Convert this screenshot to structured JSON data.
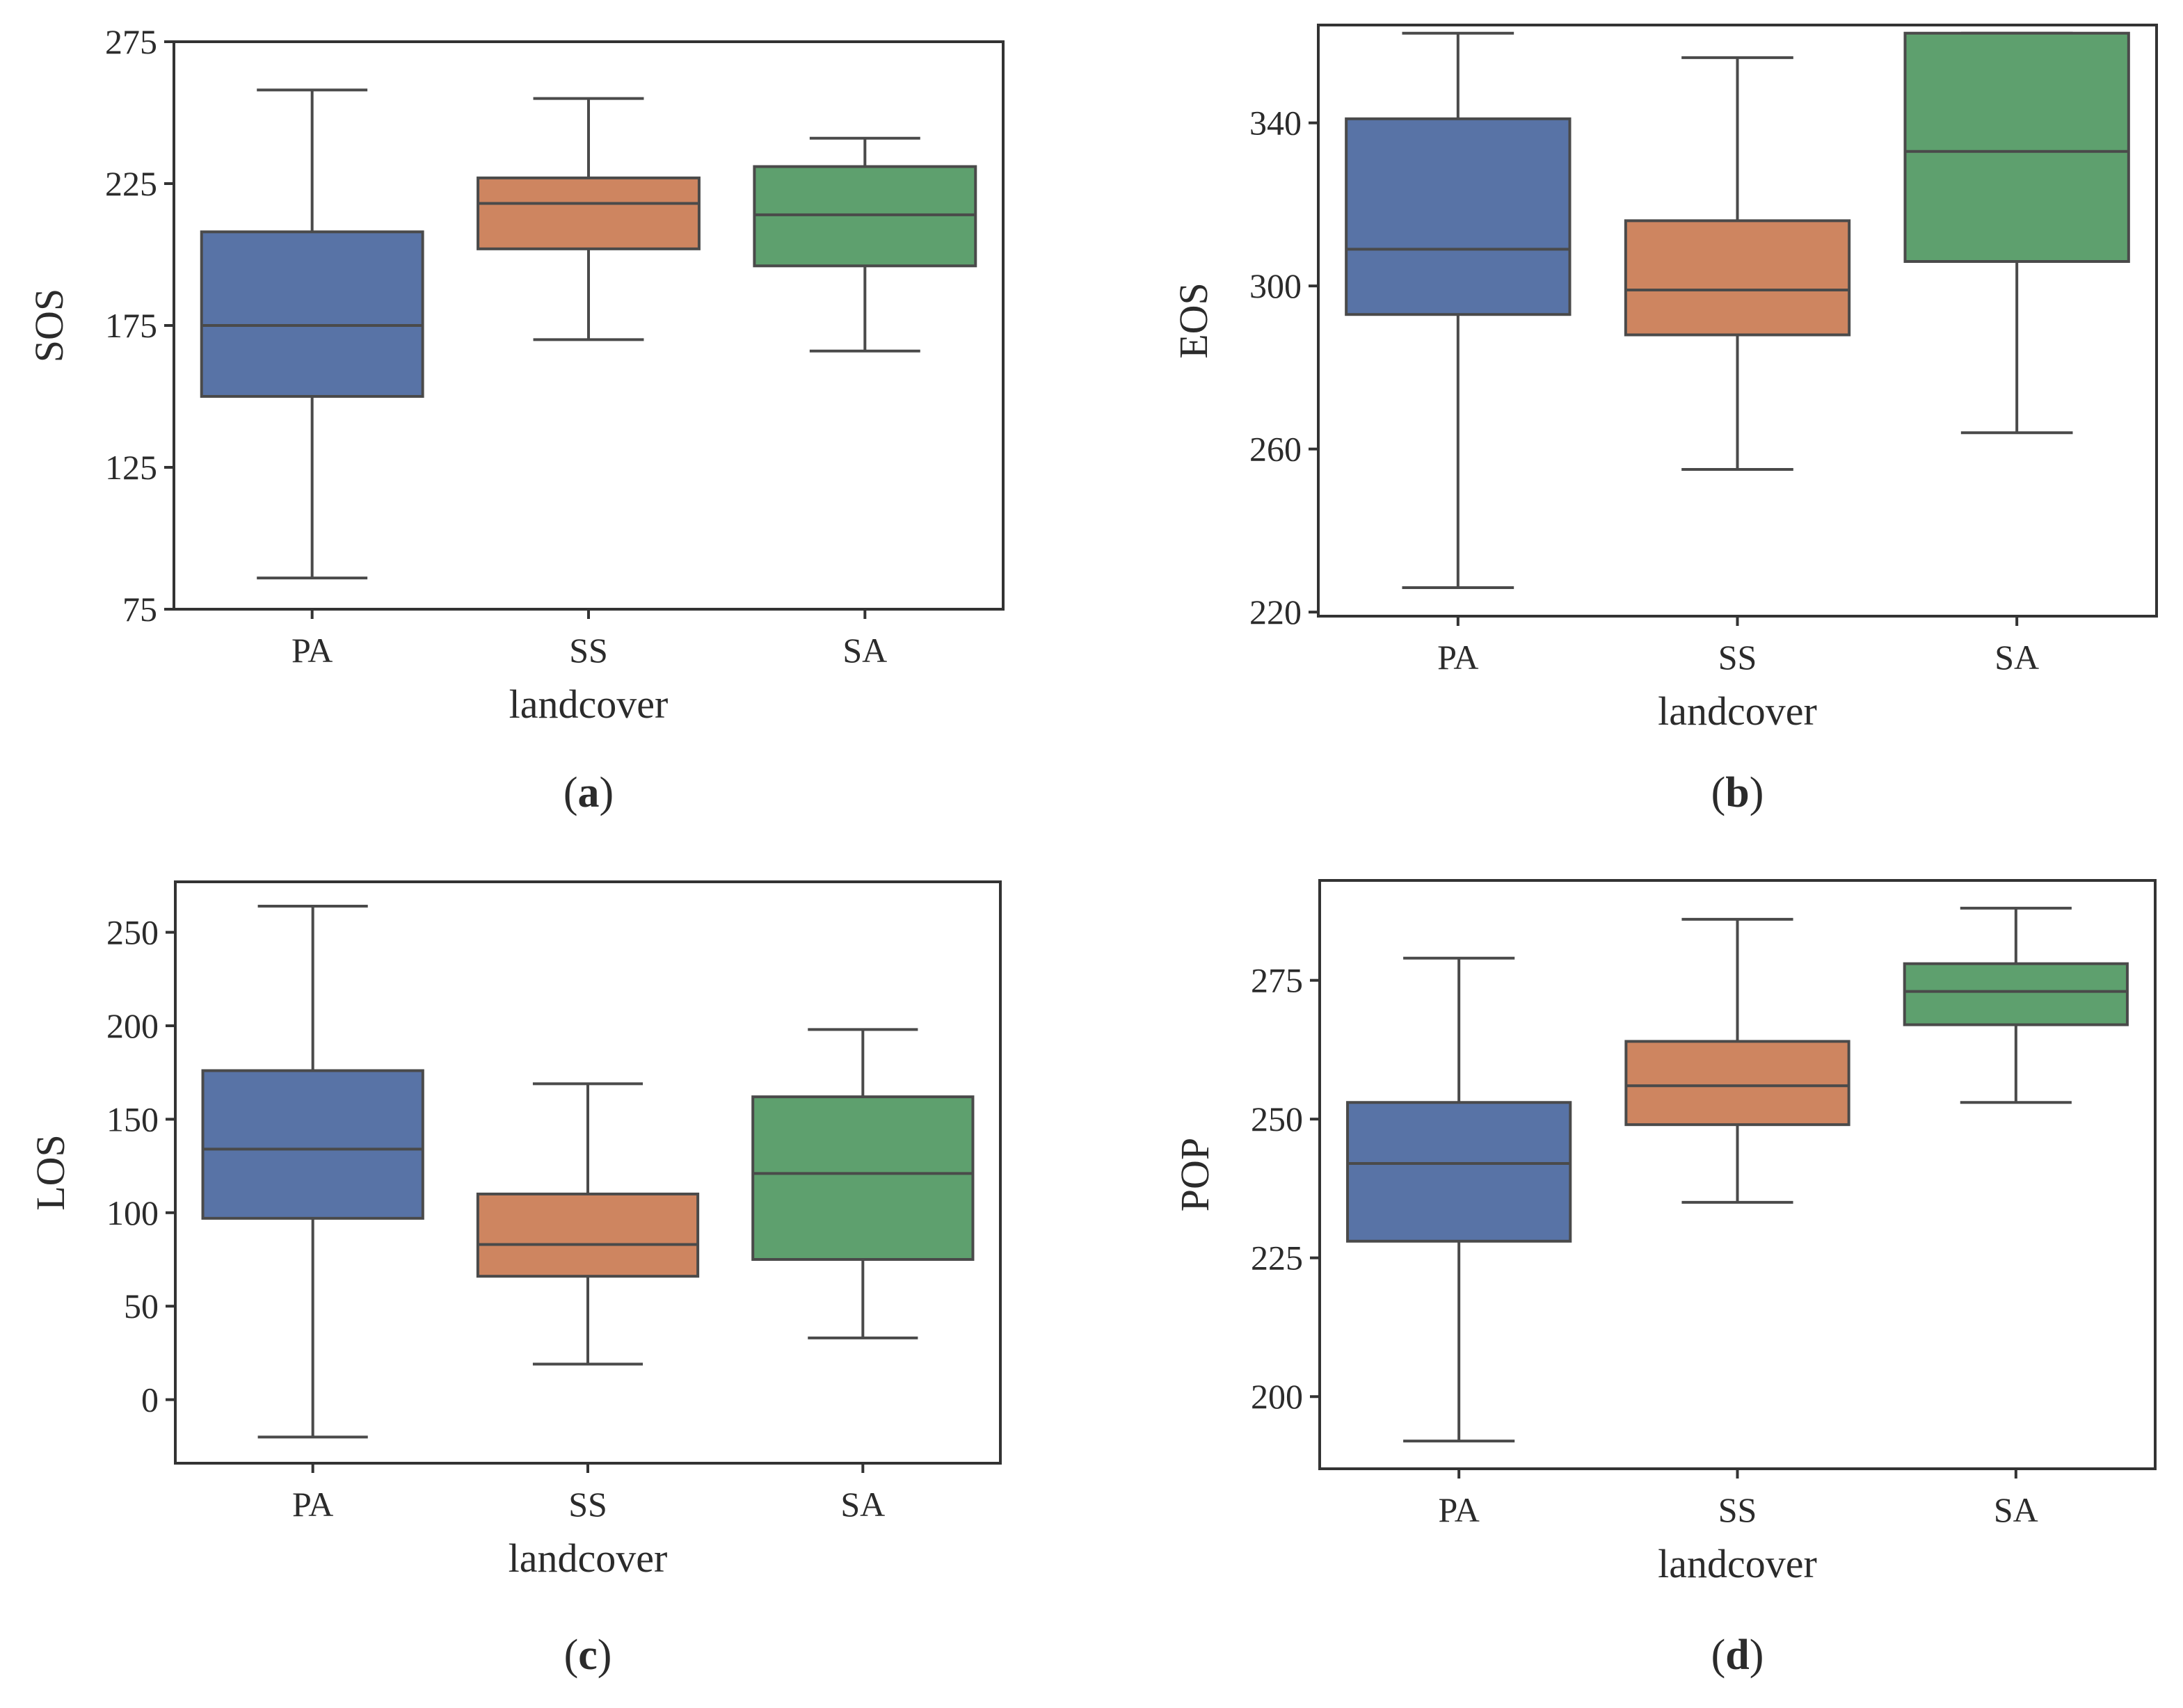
{
  "figure": {
    "background": "#ffffff"
  },
  "chart_data": [
    {
      "id": "a",
      "type": "boxplot",
      "panel_label": "a",
      "xlabel": "landcover",
      "ylabel": "SOS",
      "categories": [
        "PA",
        "SS",
        "SA"
      ],
      "colors": [
        "#5873a6",
        "#ce8560",
        "#5ea06e"
      ],
      "ylim": [
        75,
        275
      ],
      "yticks": [
        75,
        125,
        175,
        225,
        275
      ],
      "boxes": [
        {
          "category": "PA",
          "whislo": 86,
          "q1": 150,
          "med": 175,
          "q3": 208,
          "whishi": 258
        },
        {
          "category": "SS",
          "whislo": 170,
          "q1": 202,
          "med": 218,
          "q3": 227,
          "whishi": 255
        },
        {
          "category": "SA",
          "whislo": 166,
          "q1": 196,
          "med": 214,
          "q3": 231,
          "whishi": 241
        }
      ]
    },
    {
      "id": "b",
      "type": "boxplot",
      "panel_label": "b",
      "xlabel": "landcover",
      "ylabel": "EOS",
      "categories": [
        "PA",
        "SS",
        "SA"
      ],
      "colors": [
        "#5873a6",
        "#ce8560",
        "#5ea06e"
      ],
      "ylim": [
        219,
        364
      ],
      "yticks": [
        220,
        260,
        300,
        340
      ],
      "boxes": [
        {
          "category": "PA",
          "whislo": 226,
          "q1": 293,
          "med": 309,
          "q3": 341,
          "whishi": 362
        },
        {
          "category": "SS",
          "whislo": 255,
          "q1": 288,
          "med": 299,
          "q3": 316,
          "whishi": 356
        },
        {
          "category": "SA",
          "whislo": 264,
          "q1": 306,
          "med": 333,
          "q3": 362,
          "whishi": 362
        }
      ]
    },
    {
      "id": "c",
      "type": "boxplot",
      "panel_label": "c",
      "xlabel": "landcover",
      "ylabel": "LOS",
      "categories": [
        "PA",
        "SS",
        "SA"
      ],
      "colors": [
        "#5873a6",
        "#ce8560",
        "#5ea06e"
      ],
      "ylim": [
        -34,
        277
      ],
      "yticks": [
        0,
        50,
        100,
        150,
        200,
        250
      ],
      "boxes": [
        {
          "category": "PA",
          "whislo": -20,
          "q1": 97,
          "med": 134,
          "q3": 176,
          "whishi": 264
        },
        {
          "category": "SS",
          "whislo": 19,
          "q1": 66,
          "med": 83,
          "q3": 110,
          "whishi": 169
        },
        {
          "category": "SA",
          "whislo": 33,
          "q1": 75,
          "med": 121,
          "q3": 162,
          "whishi": 198
        }
      ]
    },
    {
      "id": "d",
      "type": "boxplot",
      "panel_label": "d",
      "xlabel": "landcover",
      "ylabel": "POP",
      "categories": [
        "PA",
        "SS",
        "SA"
      ],
      "colors": [
        "#5873a6",
        "#ce8560",
        "#5ea06e"
      ],
      "ylim": [
        187,
        293
      ],
      "yticks": [
        200,
        225,
        250,
        275
      ],
      "boxes": [
        {
          "category": "PA",
          "whislo": 192,
          "q1": 228,
          "med": 242,
          "q3": 253,
          "whishi": 279
        },
        {
          "category": "SS",
          "whislo": 235,
          "q1": 249,
          "med": 256,
          "q3": 264,
          "whishi": 286
        },
        {
          "category": "SA",
          "whislo": 253,
          "q1": 267,
          "med": 273,
          "q3": 278,
          "whishi": 288
        }
      ]
    }
  ]
}
